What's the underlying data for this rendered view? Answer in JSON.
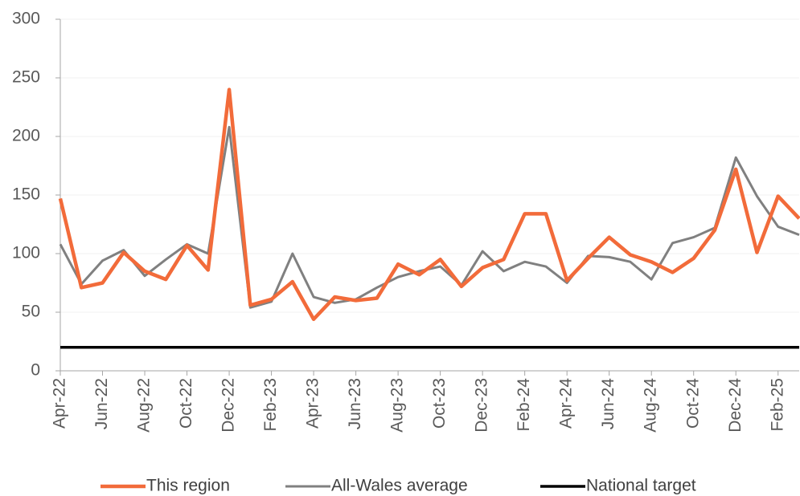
{
  "chart_data": {
    "type": "line",
    "categories": [
      "Apr-22",
      null,
      "Jun-22",
      null,
      "Aug-22",
      null,
      "Oct-22",
      null,
      "Dec-22",
      null,
      "Feb-23",
      null,
      "Apr-23",
      null,
      "Jun-23",
      null,
      "Aug-23",
      null,
      "Oct-23",
      null,
      "Dec-23",
      null,
      "Feb-24",
      null,
      "Apr-24",
      null,
      "Jun-24",
      null,
      "Aug-24",
      null,
      "Oct-24",
      null,
      "Dec-24",
      null,
      "Feb-25",
      null
    ],
    "series": [
      {
        "name": "This region",
        "color": "#f26b3a",
        "width": 4.5,
        "values": [
          147,
          71,
          75,
          101,
          85,
          78,
          107,
          86,
          240,
          56,
          61,
          76,
          44,
          63,
          60,
          62,
          91,
          82,
          95,
          72,
          88,
          95,
          134,
          134,
          77,
          96,
          114,
          99,
          93,
          84,
          96,
          120,
          172,
          101,
          149,
          130
        ]
      },
      {
        "name": "All-Wales average",
        "color": "#808080",
        "width": 3,
        "values": [
          108,
          74,
          94,
          103,
          81,
          95,
          108,
          100,
          208,
          54,
          59,
          100,
          63,
          58,
          61,
          71,
          80,
          85,
          89,
          73,
          102,
          85,
          93,
          89,
          75,
          98,
          97,
          93,
          78,
          109,
          114,
          122,
          182,
          149,
          123,
          116
        ]
      },
      {
        "name": "National target",
        "color": "#000000",
        "width": 3.5,
        "values": [
          20,
          20,
          20,
          20,
          20,
          20,
          20,
          20,
          20,
          20,
          20,
          20,
          20,
          20,
          20,
          20,
          20,
          20,
          20,
          20,
          20,
          20,
          20,
          20,
          20,
          20,
          20,
          20,
          20,
          20,
          20,
          20,
          20,
          20,
          20,
          20
        ]
      }
    ],
    "ylim": [
      0,
      300
    ],
    "yticks": [
      0,
      50,
      100,
      150,
      200,
      250,
      300
    ],
    "grid": true,
    "legend": "bottom"
  }
}
